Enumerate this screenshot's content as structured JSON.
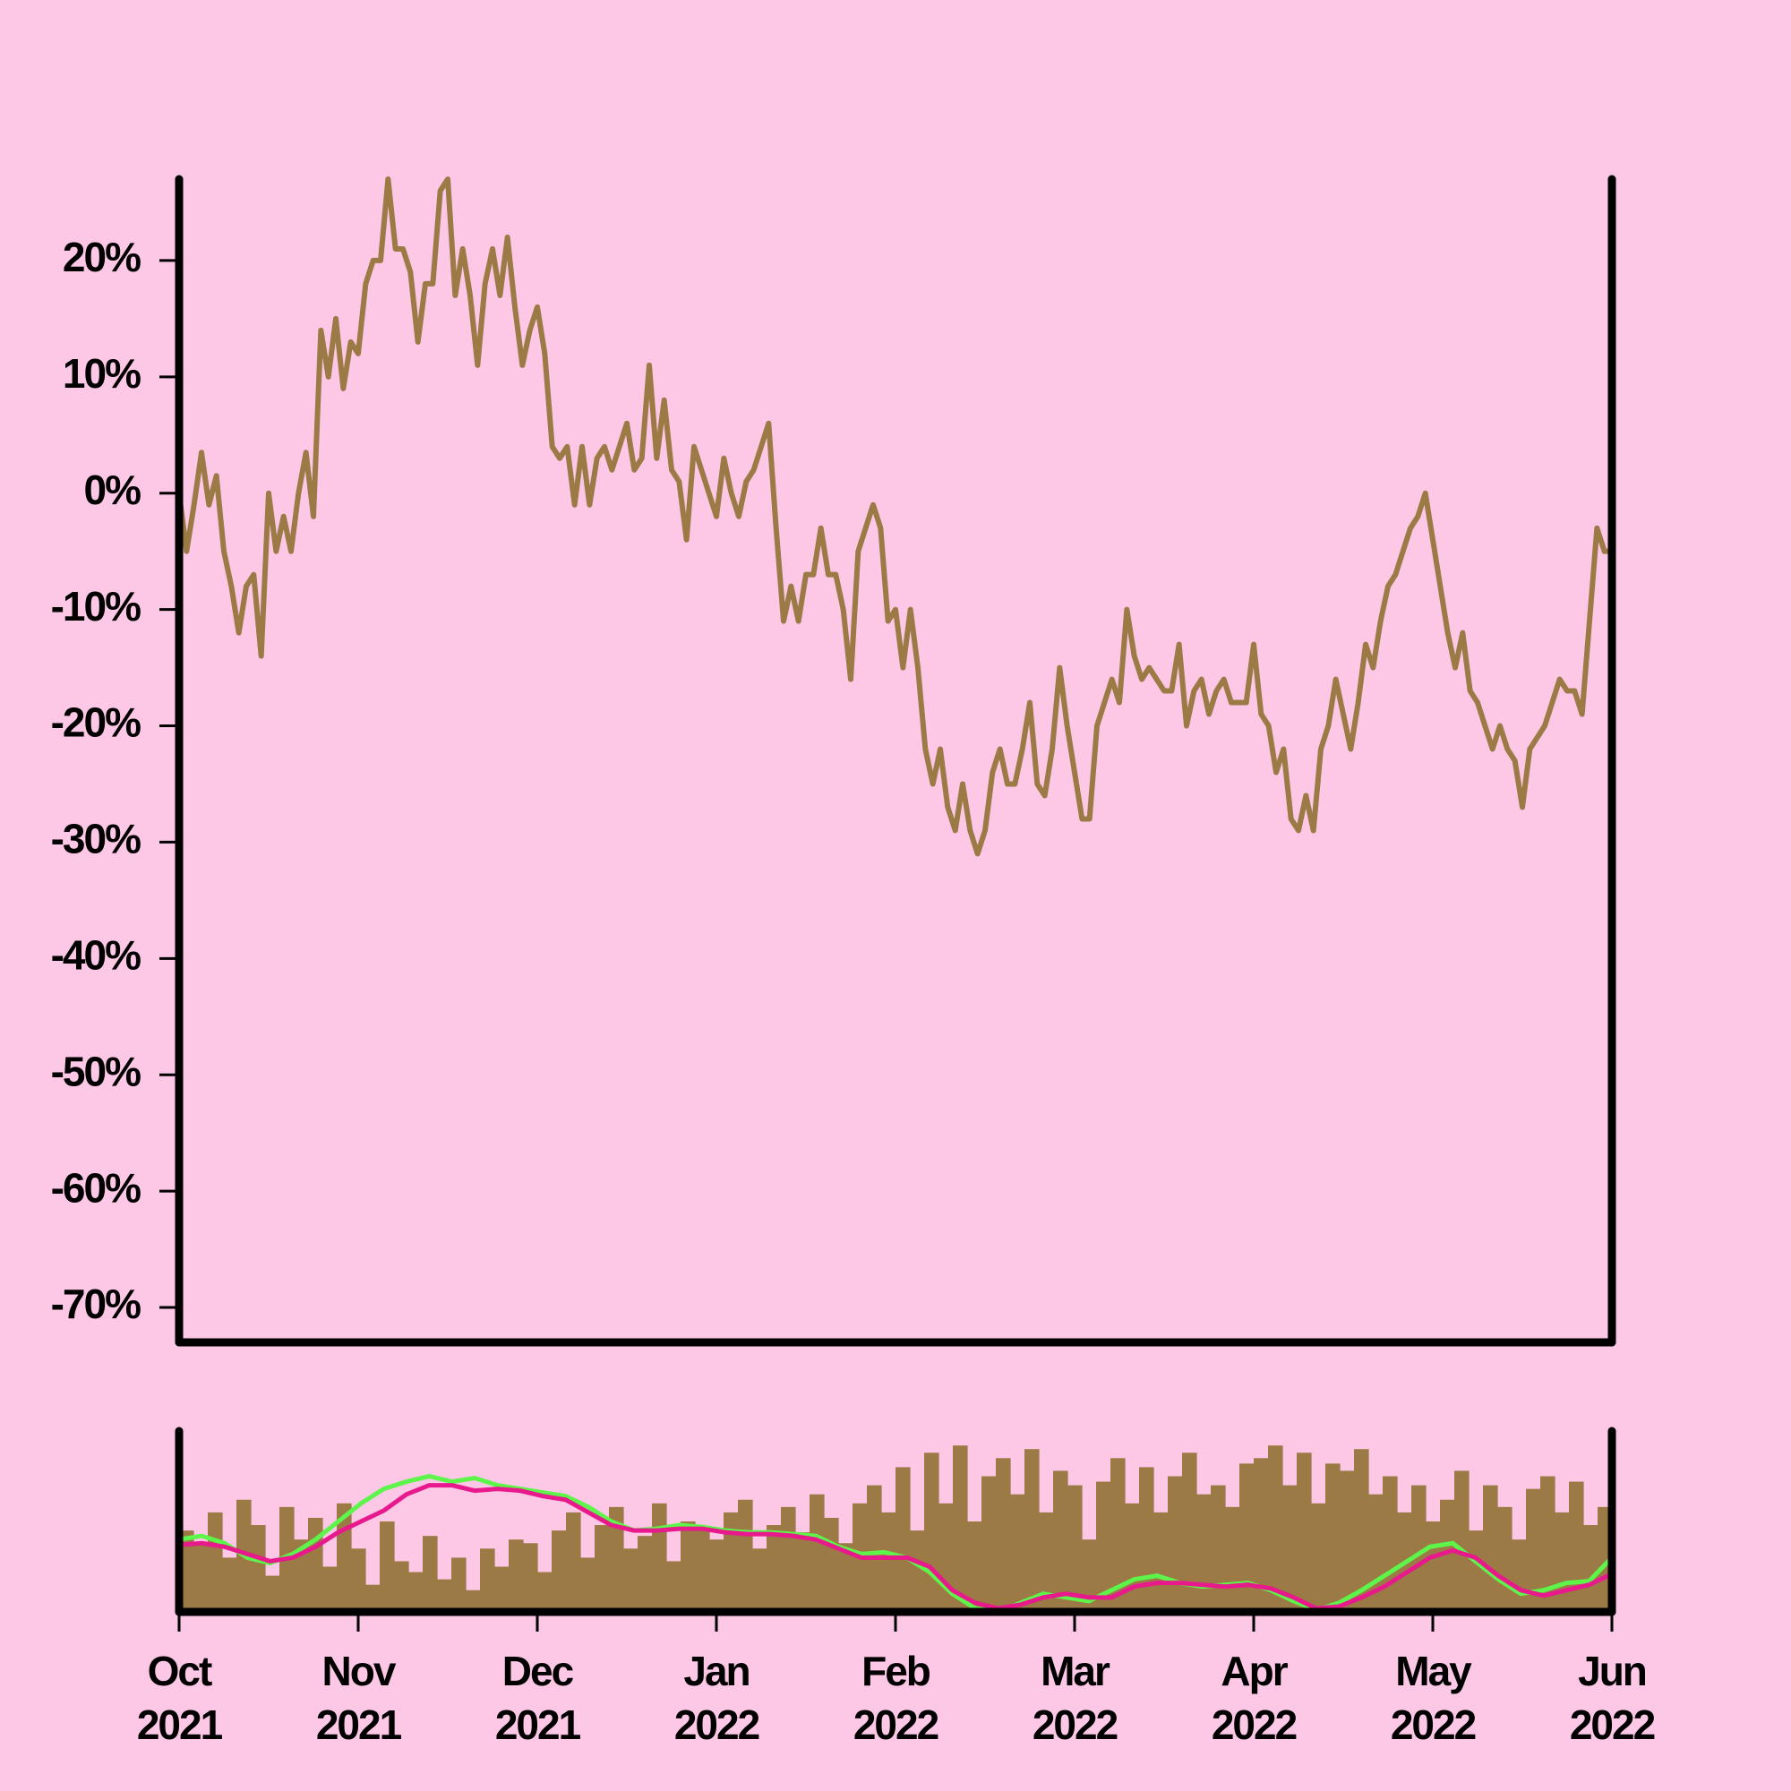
{
  "chart_data": [
    {
      "type": "line",
      "ylim": [
        -73,
        27
      ],
      "yticks": [
        {
          "value": 20,
          "label": "20%"
        },
        {
          "value": 10,
          "label": "10%"
        },
        {
          "value": 0,
          "label": "0%"
        },
        {
          "value": -10,
          "label": "-10%"
        },
        {
          "value": -20,
          "label": "-20%"
        },
        {
          "value": -30,
          "label": "-30%"
        },
        {
          "value": -40,
          "label": "-40%"
        },
        {
          "value": -50,
          "label": "-50%"
        },
        {
          "value": -60,
          "label": "-60%"
        },
        {
          "value": -70,
          "label": "-70%"
        }
      ],
      "series": [
        {
          "color": "#9b7a45",
          "values": [
            0,
            -5,
            -1,
            3.5,
            -1,
            1.5,
            -5,
            -8,
            -12,
            -8,
            -7,
            -14,
            0,
            -5,
            -2,
            -5,
            0,
            3.5,
            -2,
            14,
            10,
            15,
            9,
            13,
            12,
            18,
            20,
            20,
            27,
            21,
            21,
            19,
            13,
            18,
            18,
            26,
            27,
            17,
            21,
            17,
            11,
            18,
            21,
            17,
            22,
            16,
            11,
            14,
            16,
            12,
            4,
            3,
            4,
            -1,
            4,
            -1,
            3,
            4,
            2,
            4,
            6,
            2,
            3,
            11,
            3,
            8,
            2,
            1,
            -4,
            4,
            2,
            0,
            -2,
            3,
            0,
            -2,
            1,
            2,
            4,
            6,
            -3,
            -11,
            -8,
            -11,
            -7,
            -7,
            -3,
            -7,
            -7,
            -10,
            -16,
            -5,
            -3,
            -1,
            -3,
            -11,
            -10,
            -15,
            -10,
            -15,
            -22,
            -25,
            -22,
            -27,
            -29,
            -25,
            -29,
            -31,
            -29,
            -24,
            -22,
            -25,
            -25,
            -22,
            -18,
            -25,
            -26,
            -22,
            -15,
            -20,
            -24,
            -28,
            -28,
            -20,
            -18,
            -16,
            -18,
            -10,
            -14,
            -16,
            -15,
            -16,
            -17,
            -17,
            -13,
            -20,
            -17,
            -16,
            -19,
            -17,
            -16,
            -18,
            -18,
            -18,
            -13,
            -19,
            -20,
            -24,
            -22,
            -28,
            -29,
            -26,
            -29,
            -22,
            -20,
            -16,
            -19,
            -22,
            -18,
            -13,
            -15,
            -11,
            -8,
            -7,
            -5,
            -3,
            -2,
            0,
            -4,
            -8,
            -12,
            -15,
            -12,
            -17,
            -18,
            -20,
            -22,
            -20,
            -22,
            -23,
            -27,
            -22,
            -21,
            -20,
            -18,
            -16,
            -17,
            -17,
            -19,
            -11,
            -3,
            -5,
            -5
          ]
        }
      ]
    },
    {
      "type": "bar",
      "ylim": [
        0,
        100
      ],
      "color": "#9b7a45",
      "values": [
        45,
        38,
        55,
        30,
        62,
        48,
        20,
        58,
        40,
        52,
        25,
        60,
        35,
        15,
        50,
        28,
        22,
        42,
        18,
        30,
        12,
        35,
        25,
        40,
        38,
        22,
        45,
        55,
        30,
        48,
        58,
        35,
        42,
        60,
        28,
        50,
        45,
        40,
        55,
        62,
        35,
        48,
        58,
        44,
        65,
        52,
        38,
        60,
        70,
        55,
        80,
        45,
        88,
        60,
        92,
        50,
        75,
        85,
        65,
        90,
        55,
        78,
        70,
        40,
        72,
        85,
        60,
        80,
        55,
        75,
        88,
        65,
        70,
        58,
        82,
        85,
        92,
        70,
        88,
        60,
        82,
        78,
        90,
        65,
        75,
        55,
        70,
        50,
        62,
        78,
        45,
        70,
        58,
        40,
        68,
        75,
        55,
        72,
        48,
        58
      ],
      "series": [
        {
          "color": "#5ef54a",
          "values": [
            40,
            42,
            38,
            30,
            27,
            32,
            40,
            50,
            60,
            68,
            72,
            75,
            72,
            74,
            70,
            68,
            66,
            64,
            58,
            50,
            45,
            46,
            48,
            47,
            45,
            44,
            44,
            43,
            42,
            36,
            32,
            33,
            30,
            22,
            10,
            2,
            0,
            5,
            10,
            8,
            6,
            12,
            18,
            20,
            16,
            14,
            15,
            16,
            12,
            6,
            1,
            5,
            12,
            20,
            28,
            36,
            38,
            28,
            18,
            10,
            12,
            16,
            17,
            30
          ],
          "axis": "y2"
        },
        {
          "color": "#e8198c",
          "values": [
            37,
            38,
            36,
            32,
            28,
            30,
            36,
            44,
            50,
            56,
            65,
            70,
            70,
            67,
            68,
            67,
            64,
            62,
            55,
            48,
            45,
            45,
            46,
            46,
            44,
            43,
            43,
            42,
            40,
            35,
            30,
            30,
            30,
            25,
            12,
            5,
            2,
            4,
            8,
            10,
            8,
            8,
            14,
            16,
            16,
            15,
            14,
            15,
            13,
            8,
            2,
            3,
            8,
            14,
            22,
            30,
            34,
            30,
            20,
            12,
            9,
            12,
            15,
            21
          ],
          "axis": "y2"
        }
      ],
      "xticks": [
        "Oct\n2021",
        "Nov\n2021",
        "Dec\n2021",
        "Jan\n2022",
        "Feb\n2022",
        "Mar\n2022",
        "Apr\n2022",
        "May\n2022",
        "Jun\n2022"
      ]
    }
  ]
}
